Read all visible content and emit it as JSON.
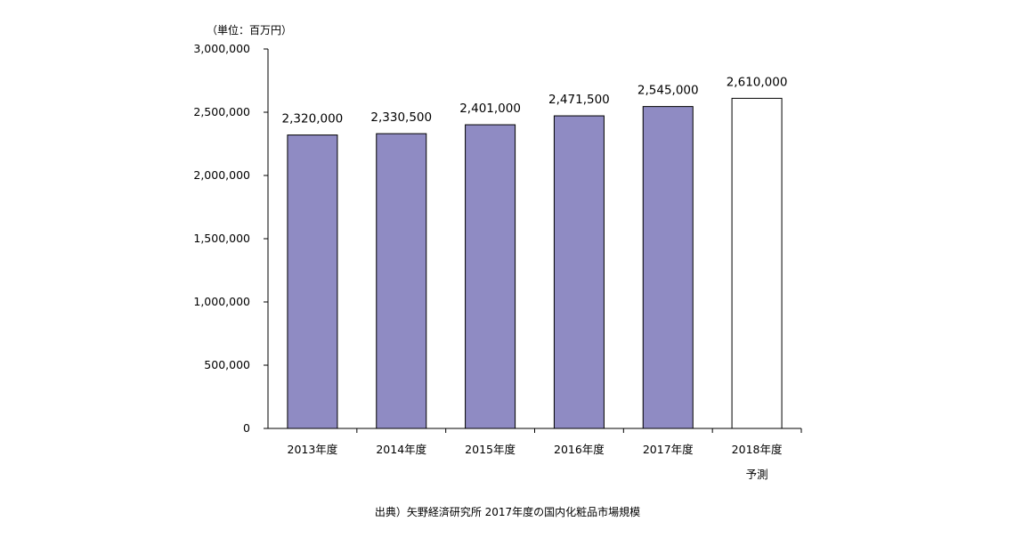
{
  "chart_data": {
    "type": "bar",
    "unit_label": "（単位：百万円）",
    "categories": [
      "2013年度",
      "2014年度",
      "2015年度",
      "2016年度",
      "2017年度",
      "2018年度"
    ],
    "category_sublabels": [
      "",
      "",
      "",
      "",
      "",
      "予測"
    ],
    "values": [
      2320000,
      2330500,
      2401000,
      2471500,
      2545000,
      2610000
    ],
    "value_labels": [
      "2,320,000",
      "2,330,500",
      "2,401,000",
      "2,471,500",
      "2,545,000",
      "2,610,000"
    ],
    "forecast_flags": [
      false,
      false,
      false,
      false,
      false,
      true
    ],
    "ylim": [
      0,
      3000000
    ],
    "yticks": [
      0,
      500000,
      1000000,
      1500000,
      2000000,
      2500000,
      3000000
    ],
    "ytick_labels": [
      "0",
      "500,000",
      "1,000,000",
      "1,500,000",
      "2,000,000",
      "2,500,000",
      "3,000,000"
    ],
    "grid": false,
    "colors": {
      "bar": "#8f8bc3",
      "forecast_bar": "#ffffff",
      "outline": "#000000"
    }
  },
  "source_note": "出典）矢野経済研究所 2017年度の国内化粧品市場規模"
}
